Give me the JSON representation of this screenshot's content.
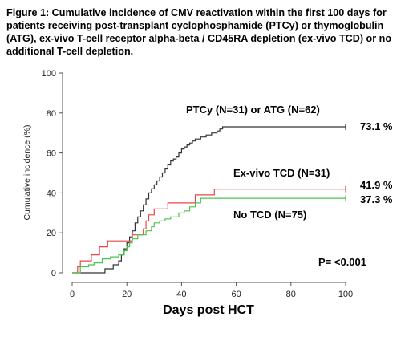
{
  "caption": "Figure 1: Cumulative incidence of CMV reactivation within the first 100 days for patients receiving post-transplant cyclophosphamide (PTCy) or thymoglobulin (ATG), ex-vivo T-cell receptor alpha-beta / CD45RA depletion (ex-vivo TCD) or no additional T-cell depletion.",
  "colors": {
    "ptcy_atg": "#333333",
    "exvivo_tcd": "#e8454a",
    "no_tcd": "#4cc34c",
    "axis": "#555555"
  },
  "chart_data": {
    "type": "line",
    "step": true,
    "title": "",
    "xlabel": "Days post HCT",
    "ylabel": "Cumulative incidence (%)",
    "xlim": [
      0,
      100
    ],
    "ylim": [
      0,
      100
    ],
    "xticks": [
      0,
      20,
      40,
      60,
      80,
      100
    ],
    "yticks": [
      0,
      20,
      40,
      60,
      80,
      100
    ],
    "grid": false,
    "legend": "inline labels",
    "series": [
      {
        "name": "PTCy (N=31) or ATG (N=62)",
        "end_label": "73.1 %",
        "color": "#333333",
        "x": [
          0,
          12,
          15,
          17,
          18,
          19,
          20,
          21,
          22,
          23,
          24,
          25,
          26,
          27,
          28,
          29,
          30,
          31,
          32,
          33,
          34,
          35,
          36,
          37,
          38,
          39,
          40,
          41,
          42,
          43,
          44,
          45,
          47,
          49,
          51,
          53,
          54,
          55,
          100
        ],
        "y": [
          0,
          2,
          4,
          6,
          9,
          12,
          15,
          18,
          21,
          25,
          28,
          31,
          34,
          37,
          40,
          42,
          44,
          46,
          48,
          50,
          52,
          54,
          56,
          57,
          58,
          60,
          62,
          63,
          64,
          65,
          66,
          67,
          68,
          69,
          70,
          71,
          72,
          73.1,
          73.1
        ]
      },
      {
        "name": "Ex-vivo TCD  (N=31)",
        "end_label": "41.9 %",
        "color": "#e8454a",
        "x": [
          0,
          2,
          3,
          7,
          10,
          13,
          18,
          20,
          22,
          25,
          26,
          27,
          28,
          30,
          35,
          45,
          47,
          52,
          100
        ],
        "y": [
          0,
          3,
          6,
          9,
          13,
          16,
          16,
          16,
          19,
          19,
          22,
          26,
          29,
          32,
          35,
          39,
          39,
          41.9,
          41.9
        ]
      },
      {
        "name": "No TCD (N=75)",
        "end_label": "37.3 %",
        "color": "#4cc34c",
        "x": [
          0,
          3,
          6,
          8,
          11,
          14,
          17,
          19,
          20,
          21,
          22,
          24,
          27,
          29,
          30,
          32,
          34,
          36,
          39,
          41,
          43,
          45,
          47,
          60,
          100
        ],
        "y": [
          0,
          3,
          4,
          5,
          7,
          8,
          9,
          11,
          13,
          15,
          17,
          19,
          21,
          23,
          25,
          26,
          27,
          28,
          30,
          31,
          33,
          35,
          37.3,
          37.3,
          37.3
        ]
      }
    ],
    "annotations": [
      {
        "text": "P= <0.001"
      }
    ]
  }
}
